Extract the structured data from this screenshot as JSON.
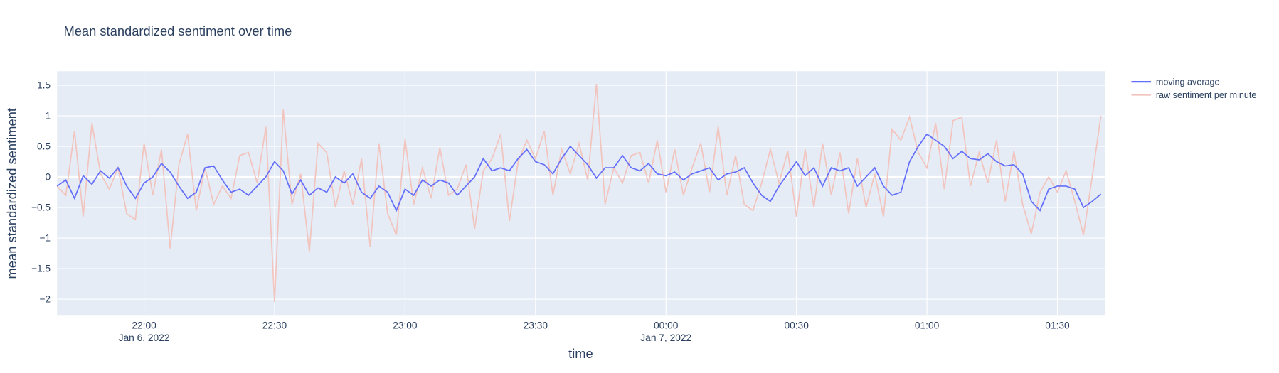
{
  "chart_data": {
    "type": "line",
    "title": "Mean standardized sentiment over time",
    "x_label": "time",
    "y_label": "mean standardized sentiment",
    "x": [
      "2022-01-06 21:40",
      "2022-01-06 21:42",
      "2022-01-06 21:44",
      "2022-01-06 21:46",
      "2022-01-06 21:48",
      "2022-01-06 21:50",
      "2022-01-06 21:52",
      "2022-01-06 21:54",
      "2022-01-06 21:56",
      "2022-01-06 21:58",
      "2022-01-06 22:00",
      "2022-01-06 22:02",
      "2022-01-06 22:04",
      "2022-01-06 22:06",
      "2022-01-06 22:08",
      "2022-01-06 22:10",
      "2022-01-06 22:12",
      "2022-01-06 22:14",
      "2022-01-06 22:16",
      "2022-01-06 22:18",
      "2022-01-06 22:20",
      "2022-01-06 22:22",
      "2022-01-06 22:24",
      "2022-01-06 22:26",
      "2022-01-06 22:28",
      "2022-01-06 22:30",
      "2022-01-06 22:32",
      "2022-01-06 22:34",
      "2022-01-06 22:36",
      "2022-01-06 22:38",
      "2022-01-06 22:40",
      "2022-01-06 22:42",
      "2022-01-06 22:44",
      "2022-01-06 22:46",
      "2022-01-06 22:48",
      "2022-01-06 22:50",
      "2022-01-06 22:52",
      "2022-01-06 22:54",
      "2022-01-06 22:56",
      "2022-01-06 22:58",
      "2022-01-06 23:00",
      "2022-01-06 23:02",
      "2022-01-06 23:04",
      "2022-01-06 23:06",
      "2022-01-06 23:08",
      "2022-01-06 23:10",
      "2022-01-06 23:12",
      "2022-01-06 23:14",
      "2022-01-06 23:16",
      "2022-01-06 23:18",
      "2022-01-06 23:20",
      "2022-01-06 23:22",
      "2022-01-06 23:24",
      "2022-01-06 23:26",
      "2022-01-06 23:28",
      "2022-01-06 23:30",
      "2022-01-06 23:32",
      "2022-01-06 23:34",
      "2022-01-06 23:36",
      "2022-01-06 23:38",
      "2022-01-06 23:40",
      "2022-01-06 23:42",
      "2022-01-06 23:44",
      "2022-01-06 23:46",
      "2022-01-06 23:48",
      "2022-01-06 23:50",
      "2022-01-06 23:52",
      "2022-01-06 23:54",
      "2022-01-06 23:56",
      "2022-01-06 23:58",
      "2022-01-07 00:00",
      "2022-01-07 00:02",
      "2022-01-07 00:04",
      "2022-01-07 00:06",
      "2022-01-07 00:08",
      "2022-01-07 00:10",
      "2022-01-07 00:12",
      "2022-01-07 00:14",
      "2022-01-07 00:16",
      "2022-01-07 00:18",
      "2022-01-07 00:20",
      "2022-01-07 00:22",
      "2022-01-07 00:24",
      "2022-01-07 00:26",
      "2022-01-07 00:28",
      "2022-01-07 00:30",
      "2022-01-07 00:32",
      "2022-01-07 00:34",
      "2022-01-07 00:36",
      "2022-01-07 00:38",
      "2022-01-07 00:40",
      "2022-01-07 00:42",
      "2022-01-07 00:44",
      "2022-01-07 00:46",
      "2022-01-07 00:48",
      "2022-01-07 00:50",
      "2022-01-07 00:52",
      "2022-01-07 00:54",
      "2022-01-07 00:56",
      "2022-01-07 00:58",
      "2022-01-07 01:00",
      "2022-01-07 01:02",
      "2022-01-07 01:04",
      "2022-01-07 01:06",
      "2022-01-07 01:08",
      "2022-01-07 01:10",
      "2022-01-07 01:12",
      "2022-01-07 01:14",
      "2022-01-07 01:16",
      "2022-01-07 01:18",
      "2022-01-07 01:20",
      "2022-01-07 01:22",
      "2022-01-07 01:24",
      "2022-01-07 01:26",
      "2022-01-07 01:28",
      "2022-01-07 01:30",
      "2022-01-07 01:32",
      "2022-01-07 01:34",
      "2022-01-07 01:36",
      "2022-01-07 01:38",
      "2022-01-07 01:40"
    ],
    "series": [
      {
        "name": "moving average",
        "color": "#636efa",
        "values": [
          -0.15,
          -0.05,
          -0.35,
          0.02,
          -0.12,
          0.1,
          -0.02,
          0.15,
          -0.15,
          -0.35,
          -0.1,
          0.0,
          0.22,
          0.08,
          -0.15,
          -0.35,
          -0.25,
          0.15,
          0.18,
          -0.05,
          -0.25,
          -0.2,
          -0.3,
          -0.15,
          0.0,
          0.25,
          0.1,
          -0.28,
          -0.05,
          -0.3,
          -0.18,
          -0.25,
          0.0,
          -0.1,
          0.05,
          -0.25,
          -0.35,
          -0.15,
          -0.25,
          -0.55,
          -0.2,
          -0.3,
          -0.05,
          -0.15,
          -0.05,
          -0.1,
          -0.3,
          -0.15,
          0.0,
          0.3,
          0.1,
          0.15,
          0.1,
          0.3,
          0.45,
          0.25,
          0.2,
          0.05,
          0.3,
          0.5,
          0.35,
          0.2,
          -0.02,
          0.15,
          0.15,
          0.35,
          0.15,
          0.1,
          0.22,
          0.05,
          0.02,
          0.08,
          -0.05,
          0.05,
          0.1,
          0.15,
          -0.05,
          0.05,
          0.08,
          0.15,
          -0.1,
          -0.3,
          -0.4,
          -0.15,
          0.05,
          0.25,
          0.02,
          0.15,
          -0.15,
          0.15,
          0.1,
          0.15,
          -0.15,
          0.0,
          0.15,
          -0.15,
          -0.3,
          -0.25,
          0.25,
          0.5,
          0.7,
          0.6,
          0.5,
          0.3,
          0.42,
          0.3,
          0.28,
          0.38,
          0.25,
          0.18,
          0.2,
          0.05,
          -0.4,
          -0.55,
          -0.2,
          -0.15,
          -0.15,
          -0.2,
          -0.5,
          -0.4,
          -0.28
        ]
      },
      {
        "name": "raw sentiment per minute",
        "color": "#f2c4be",
        "values": [
          -0.15,
          -0.3,
          0.75,
          -0.65,
          0.88,
          0.05,
          -0.2,
          0.15,
          -0.6,
          -0.7,
          0.55,
          -0.3,
          0.45,
          -1.17,
          0.2,
          0.7,
          -0.55,
          0.15,
          -0.45,
          -0.15,
          -0.35,
          0.35,
          0.4,
          -0.1,
          0.82,
          -2.05,
          1.1,
          -0.45,
          0.05,
          -1.22,
          0.55,
          0.4,
          -0.5,
          0.1,
          -0.45,
          0.3,
          -1.15,
          0.55,
          -0.6,
          -0.95,
          0.62,
          -0.45,
          0.15,
          -0.35,
          0.48,
          -0.3,
          -0.2,
          0.2,
          -0.85,
          0.1,
          0.3,
          0.7,
          -0.72,
          0.25,
          0.6,
          0.3,
          0.75,
          -0.3,
          0.45,
          0.05,
          0.55,
          -0.05,
          1.52,
          -0.45,
          0.15,
          -0.1,
          0.35,
          0.4,
          -0.1,
          0.6,
          -0.25,
          0.45,
          -0.3,
          0.15,
          0.55,
          -0.25,
          0.82,
          -0.3,
          0.35,
          -0.45,
          -0.55,
          -0.1,
          0.45,
          -0.1,
          0.42,
          -0.65,
          0.45,
          -0.5,
          0.55,
          -0.3,
          0.4,
          -0.6,
          0.3,
          -0.5,
          0.05,
          -0.65,
          0.78,
          0.6,
          0.98,
          0.4,
          0.15,
          0.88,
          -0.2,
          0.92,
          0.98,
          -0.15,
          0.4,
          -0.1,
          0.6,
          -0.4,
          0.42,
          -0.45,
          -0.93,
          -0.25,
          0.0,
          -0.25,
          0.1,
          -0.4,
          -0.95,
          0.0,
          1.0
        ]
      }
    ],
    "xlim": [
      "2022-01-06 21:40",
      "2022-01-07 01:41"
    ],
    "xticks": [
      {
        "value": "2022-01-06 22:00",
        "label": "22:00\nJan 6, 2022"
      },
      {
        "value": "2022-01-06 22:30",
        "label": "22:30"
      },
      {
        "value": "2022-01-06 23:00",
        "label": "23:00"
      },
      {
        "value": "2022-01-06 23:30",
        "label": "23:30"
      },
      {
        "value": "2022-01-07 00:00",
        "label": "00:00\nJan 7, 2022"
      },
      {
        "value": "2022-01-07 00:30",
        "label": "00:30"
      },
      {
        "value": "2022-01-07 01:00",
        "label": "01:00"
      },
      {
        "value": "2022-01-07 01:30",
        "label": "01:30"
      }
    ],
    "ylim": [
      -2.27,
      1.73
    ],
    "yticks": [
      {
        "value": -2,
        "label": "−2"
      },
      {
        "value": -1.5,
        "label": "−1.5"
      },
      {
        "value": -1,
        "label": "−1"
      },
      {
        "value": -0.5,
        "label": "−0.5"
      },
      0,
      0.5,
      1,
      1.5
    ],
    "grid": true,
    "legend": "right"
  }
}
